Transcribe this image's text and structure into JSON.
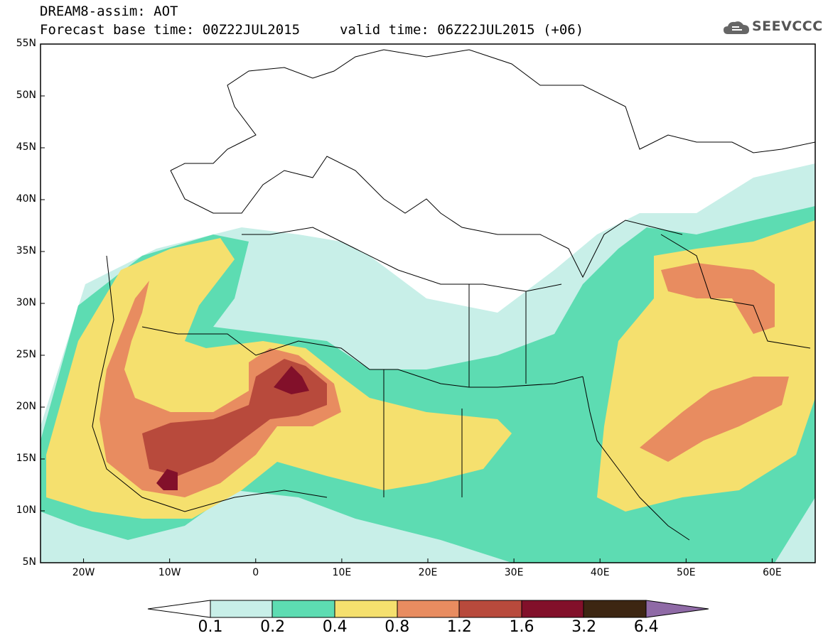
{
  "header": {
    "title": "DREAM8-assim: AOT",
    "base_time": "Forecast base time: 00Z22JUL2015",
    "valid_time": "valid time: 06Z22JUL2015 (+06)"
  },
  "logo": {
    "text": "SEEVCCC",
    "icon": "cloud-icon"
  },
  "map": {
    "lat_range": [
      5,
      55
    ],
    "lon_range": [
      -25,
      65
    ],
    "lat_labels": [
      "55N",
      "50N",
      "45N",
      "40N",
      "35N",
      "30N",
      "25N",
      "20N",
      "15N",
      "10N",
      "5N"
    ],
    "lon_labels": [
      "20W",
      "10W",
      "0",
      "10E",
      "20E",
      "30E",
      "40E",
      "50E",
      "60E"
    ]
  },
  "colorbar": {
    "labels": [
      "0.1",
      "0.2",
      "0.4",
      "0.8",
      "1.2",
      "1.6",
      "3.2",
      "6.4"
    ],
    "colors": [
      "#ffffff",
      "#c8efe8",
      "#5ddcb2",
      "#f5e06e",
      "#e88c60",
      "#b84a3c",
      "#82102a",
      "#3d2612",
      "#8f6aa6"
    ]
  }
}
